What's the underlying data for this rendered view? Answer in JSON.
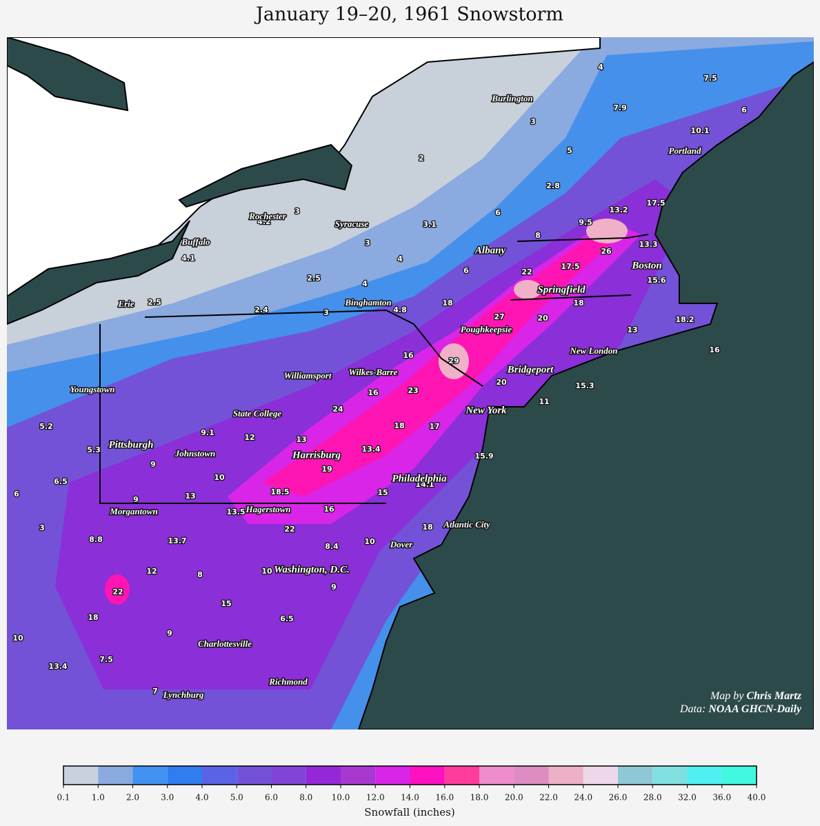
{
  "title": "January 19–20, 1961 Snowstorm",
  "cities": [
    "Burlington",
    "Portland",
    "Rochester",
    "Syracuse",
    "Buffalo",
    "Albany",
    "Boston",
    "Springfield",
    "Erie",
    "Binghamton",
    "Poughkeepsie",
    "New London",
    "Bridgeport",
    "Williamsport",
    "Wilkes-Barre",
    "Youngstown",
    "State College",
    "New York",
    "Pittsburgh",
    "Johnstown",
    "Harrisburg",
    "Philadelphia",
    "Morgantown",
    "Hagerstown",
    "Atlantic City",
    "Dover",
    "Washington, D.C.",
    "Charlottesville",
    "Richmond",
    "Lynchburg"
  ],
  "observations": [
    4,
    7.5,
    6,
    7.9,
    3,
    10.1,
    5,
    2,
    2.8,
    17.5,
    3,
    4.2,
    13.2,
    6,
    9.5,
    3.1,
    8,
    3,
    13.3,
    26,
    4.1,
    4,
    17.5,
    6,
    22,
    2.5,
    4,
    15.6,
    2.5,
    18,
    18,
    2.4,
    4.8,
    3,
    27,
    20,
    18.2,
    13,
    16,
    16,
    29,
    20,
    15.3,
    16,
    23,
    11,
    24,
    5.2,
    18,
    17,
    9.1,
    12,
    13,
    5.3,
    13.4,
    15.9,
    9,
    19,
    6.5,
    10,
    14.1,
    18.5,
    15,
    6,
    9,
    13,
    13.5,
    16,
    22,
    3,
    18,
    8.8,
    13.7,
    10,
    8.4,
    12,
    8,
    10,
    9,
    22,
    15,
    18,
    6.5,
    9,
    10,
    7.5,
    13.4,
    7
  ],
  "credit": {
    "map_prefix": "Map by",
    "map_author": "Chris Martz",
    "data_prefix": "Data:",
    "data_source": "NOAA GHCN-Daily"
  },
  "colorbar": {
    "label": "Snowfall (inches)",
    "ticks": [
      0.1,
      {
        "value": 1,
        "label": "1.0"
      },
      {
        "value": 2,
        "label": "2.0"
      },
      {
        "value": 3,
        "label": "3.0"
      },
      {
        "value": 4,
        "label": "4.0"
      },
      {
        "value": 5,
        "label": "5.0"
      },
      {
        "value": 6,
        "label": "6.0"
      },
      {
        "value": 8,
        "label": "8.0"
      },
      {
        "value": 10,
        "label": "10.0"
      },
      {
        "value": 12,
        "label": "12.0"
      },
      {
        "value": 14,
        "label": "14.0"
      },
      {
        "value": 16,
        "label": "16.0"
      },
      {
        "value": 18,
        "label": "18.0"
      },
      {
        "value": 20,
        "label": "20.0"
      },
      {
        "value": 22,
        "label": "22.0"
      },
      {
        "value": 24,
        "label": "24.0"
      },
      {
        "value": 26,
        "label": "26.0"
      },
      {
        "value": 28,
        "label": "28.0"
      },
      {
        "value": 32,
        "label": "32.0"
      },
      {
        "value": 36,
        "label": "36.0"
      },
      {
        "value": 40,
        "label": "40.0"
      }
    ],
    "colors": [
      "#c8d2de",
      "#8aaae0",
      "#4193f2",
      "#2f7df0",
      "#5a62e6",
      "#7352d8",
      "#8244d8",
      "#9428d8",
      "#a838d0",
      "#d825e8",
      "#ff10c0",
      "#ff3c9c",
      "#ee8ccc",
      "#dc8cc0",
      "#eeb0c6",
      "#ecd8e8",
      "#8ec8d4",
      "#80e0e0",
      "#50f0f0",
      "#40f8e0"
    ]
  }
}
